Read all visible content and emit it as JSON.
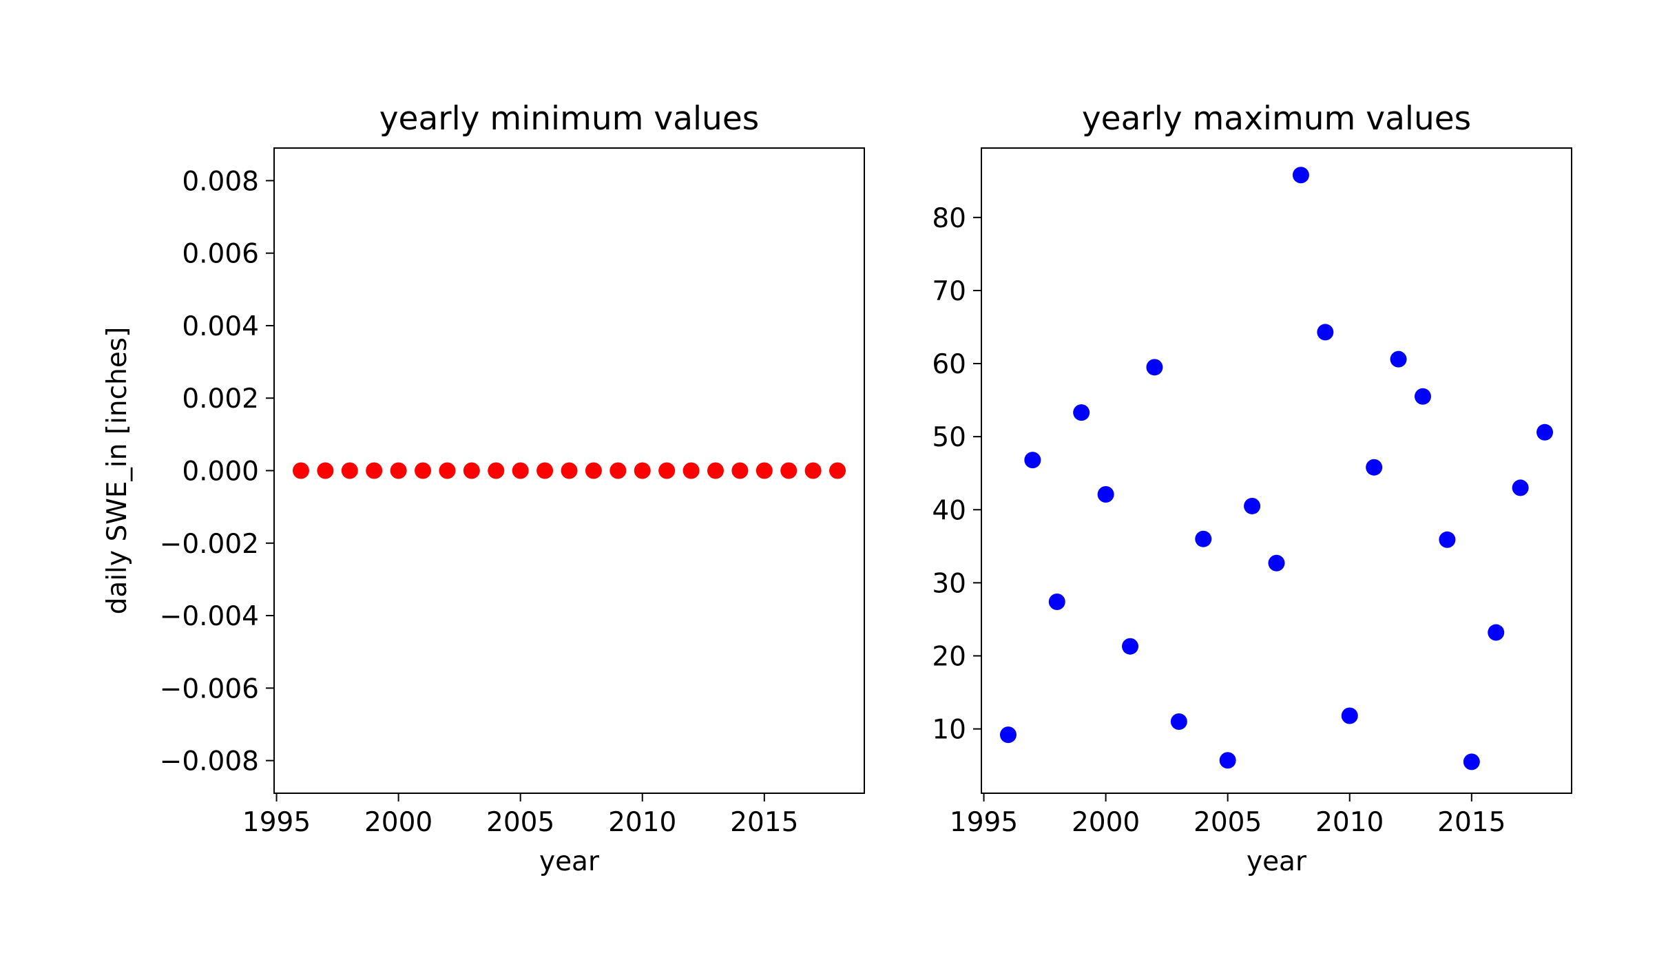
{
  "chart_data": [
    {
      "type": "scatter",
      "title": "yearly minimum values",
      "xlabel": "year",
      "ylabel": "daily SWE_in [inches]",
      "xlim": [
        1994.9,
        2019.1
      ],
      "ylim": [
        -0.0089,
        0.0089
      ],
      "xticks": [
        1995,
        2000,
        2005,
        2010,
        2015
      ],
      "xtick_labels": [
        "1995",
        "2000",
        "2005",
        "2010",
        "2015"
      ],
      "yticks": [
        -0.008,
        -0.006,
        -0.004,
        -0.002,
        0.0,
        0.002,
        0.004,
        0.006,
        0.008
      ],
      "ytick_labels": [
        "−0.008",
        "−0.006",
        "−0.004",
        "−0.002",
        "0.000",
        "0.002",
        "0.004",
        "0.006",
        "0.008"
      ],
      "grid": false,
      "color": "#ff0000",
      "x": [
        1996,
        1997,
        1998,
        1999,
        2000,
        2001,
        2002,
        2003,
        2004,
        2005,
        2006,
        2007,
        2008,
        2009,
        2010,
        2011,
        2012,
        2013,
        2014,
        2015,
        2016,
        2017,
        2018
      ],
      "y": [
        0,
        0,
        0,
        0,
        0,
        0,
        0,
        0,
        0,
        0,
        0,
        0,
        0,
        0,
        0,
        0,
        0,
        0,
        0,
        0,
        0,
        0,
        0
      ]
    },
    {
      "type": "scatter",
      "title": "yearly maximum values",
      "xlabel": "year",
      "ylabel": "",
      "xlim": [
        1994.9,
        2019.1
      ],
      "ylim": [
        1.2,
        89.5
      ],
      "xticks": [
        1995,
        2000,
        2005,
        2010,
        2015
      ],
      "xtick_labels": [
        "1995",
        "2000",
        "2005",
        "2010",
        "2015"
      ],
      "yticks": [
        10,
        20,
        30,
        40,
        50,
        60,
        70,
        80
      ],
      "ytick_labels": [
        "10",
        "20",
        "30",
        "40",
        "50",
        "60",
        "70",
        "80"
      ],
      "grid": false,
      "color": "#0000ff",
      "x": [
        1996,
        1997,
        1998,
        1999,
        2000,
        2001,
        2002,
        2003,
        2004,
        2005,
        2006,
        2007,
        2008,
        2009,
        2010,
        2011,
        2012,
        2013,
        2014,
        2015,
        2016,
        2017,
        2018
      ],
      "y": [
        9.2,
        46.8,
        27.4,
        53.3,
        42.1,
        21.3,
        59.5,
        11.0,
        36.0,
        5.7,
        40.5,
        32.7,
        85.8,
        64.3,
        11.8,
        45.8,
        60.6,
        55.5,
        35.9,
        5.5,
        23.2,
        43.0,
        50.6
      ]
    }
  ]
}
